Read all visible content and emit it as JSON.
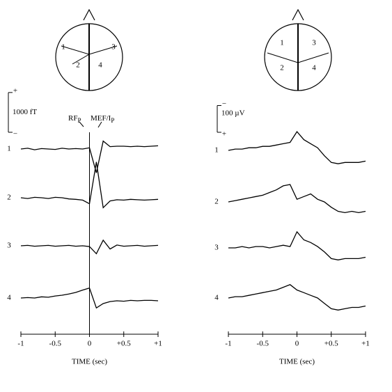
{
  "chart_data": [
    {
      "type": "line",
      "sensor_labels": [
        "1",
        "2",
        "3",
        "4"
      ],
      "scale_bar": {
        "value": 1000,
        "label": "1000 fT",
        "top_sign": "+",
        "bottom_sign": "−"
      },
      "annotations": [
        {
          "text": "RF",
          "subscript": "P"
        },
        {
          "text": "MEF/I",
          "subscript": "P"
        }
      ],
      "x": [
        -1,
        -0.9,
        -0.8,
        -0.7,
        -0.6,
        -0.5,
        -0.4,
        -0.3,
        -0.2,
        -0.1,
        0,
        0.1,
        0.2,
        0.3,
        0.4,
        0.5,
        0.6,
        0.7,
        0.8,
        0.9,
        1
      ],
      "xlim": [
        -1,
        1
      ],
      "xticks": [
        -1,
        -0.5,
        0,
        {
          "value": 0.5,
          "label": "+0.5"
        },
        {
          "value": 1,
          "label": "+1"
        }
      ],
      "xlabel": "TIME (sec)",
      "series": [
        {
          "name": "1",
          "color": "#000000",
          "values": [
            0,
            20,
            -20,
            10,
            0,
            -10,
            20,
            0,
            10,
            0,
            30,
            -600,
            200,
            60,
            70,
            70,
            60,
            70,
            60,
            70,
            80
          ]
        },
        {
          "name": "2",
          "color": "#000000",
          "values": [
            0,
            -20,
            10,
            0,
            -20,
            10,
            0,
            -30,
            -40,
            -60,
            -150,
            900,
            -250,
            -80,
            -50,
            -60,
            -40,
            -50,
            -60,
            -50,
            -40
          ]
        },
        {
          "name": "3",
          "color": "#000000",
          "values": [
            0,
            10,
            -10,
            0,
            10,
            -10,
            0,
            10,
            -10,
            0,
            -20,
            -200,
            140,
            -80,
            20,
            -10,
            0,
            10,
            -10,
            0,
            10
          ]
        },
        {
          "name": "4",
          "color": "#000000",
          "values": [
            0,
            10,
            0,
            30,
            20,
            50,
            70,
            100,
            140,
            200,
            250,
            -250,
            -140,
            -90,
            -70,
            -80,
            -60,
            -70,
            -60,
            -60,
            -70
          ]
        }
      ]
    },
    {
      "type": "line",
      "sensor_labels": [
        "1",
        "2",
        "3",
        "4"
      ],
      "scale_bar": {
        "value": 100,
        "label": "100 µV",
        "top_sign": "−",
        "bottom_sign": "+"
      },
      "x": [
        -1,
        -0.9,
        -0.8,
        -0.7,
        -0.6,
        -0.5,
        -0.4,
        -0.3,
        -0.2,
        -0.1,
        0,
        0.1,
        0.2,
        0.3,
        0.4,
        0.5,
        0.6,
        0.7,
        0.8,
        0.9,
        1
      ],
      "xlim": [
        -1,
        1
      ],
      "xticks": [
        -1,
        -0.5,
        0,
        {
          "value": 0.5,
          "label": "+0.5"
        },
        {
          "value": 1,
          "label": "+1"
        }
      ],
      "xlabel": "TIME (sec)",
      "series": [
        {
          "name": "1",
          "color": "#000000",
          "values": [
            0,
            5,
            5,
            10,
            10,
            15,
            15,
            20,
            25,
            30,
            70,
            40,
            25,
            10,
            -20,
            -45,
            -50,
            -45,
            -45,
            -45,
            -40
          ]
        },
        {
          "name": "2",
          "color": "#000000",
          "values": [
            0,
            5,
            10,
            15,
            20,
            25,
            35,
            45,
            60,
            65,
            10,
            20,
            30,
            10,
            0,
            -20,
            -35,
            -40,
            -35,
            -40,
            -35
          ]
        },
        {
          "name": "3",
          "color": "#000000",
          "values": [
            0,
            0,
            5,
            0,
            5,
            5,
            0,
            5,
            10,
            5,
            60,
            30,
            20,
            5,
            -15,
            -40,
            -45,
            -40,
            -40,
            -40,
            -35
          ]
        },
        {
          "name": "4",
          "color": "#000000",
          "values": [
            0,
            5,
            5,
            10,
            15,
            20,
            25,
            30,
            40,
            50,
            30,
            20,
            10,
            0,
            -20,
            -40,
            -45,
            -40,
            -35,
            -35,
            -30
          ]
        }
      ]
    }
  ]
}
